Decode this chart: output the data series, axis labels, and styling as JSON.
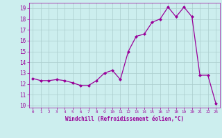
{
  "x": [
    0,
    1,
    2,
    3,
    4,
    5,
    6,
    7,
    8,
    9,
    10,
    11,
    12,
    13,
    14,
    15,
    16,
    17,
    18,
    19,
    20,
    21,
    22,
    23
  ],
  "y": [
    12.5,
    12.3,
    12.3,
    12.4,
    12.3,
    12.1,
    11.85,
    11.85,
    12.3,
    13.0,
    13.25,
    12.4,
    15.0,
    16.4,
    16.6,
    17.7,
    18.0,
    19.1,
    18.2,
    19.1,
    18.2,
    12.8,
    12.8,
    10.2
  ],
  "line_color": "#990099",
  "marker": "D",
  "marker_size": 2.0,
  "bg_color": "#cceeee",
  "grid_color": "#aacccc",
  "xlabel": "Windchill (Refroidissement éolien,°C)",
  "xlabel_color": "#990099",
  "tick_color": "#990099",
  "ylim": [
    9.8,
    19.5
  ],
  "xlim": [
    -0.5,
    23.5
  ],
  "yticks": [
    10,
    11,
    12,
    13,
    14,
    15,
    16,
    17,
    18,
    19
  ],
  "xticks": [
    0,
    1,
    2,
    3,
    4,
    5,
    6,
    7,
    8,
    9,
    10,
    11,
    12,
    13,
    14,
    15,
    16,
    17,
    18,
    19,
    20,
    21,
    22,
    23
  ]
}
